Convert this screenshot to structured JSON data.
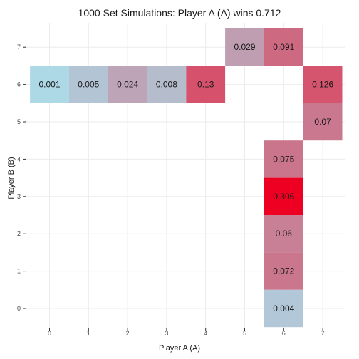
{
  "chart_data": {
    "type": "heatmap",
    "title": "1000 Set Simulations: Player A (A) wins 0.712",
    "xlabel": "Player A (A)",
    "ylabel": "Player B (B)",
    "x_ticks": [
      "0",
      "1",
      "2",
      "3",
      "4",
      "5",
      "6",
      "7"
    ],
    "y_ticks": [
      "0",
      "1",
      "2",
      "3",
      "4",
      "5",
      "6",
      "7"
    ],
    "grid": true,
    "legend": "none",
    "color_scale": {
      "low": "#add8e6",
      "high": "#ee0022"
    },
    "cells": [
      {
        "x": 0,
        "y": 6,
        "label": "0.001",
        "value": 0.001
      },
      {
        "x": 1,
        "y": 6,
        "label": "0.005",
        "value": 0.005
      },
      {
        "x": 2,
        "y": 6,
        "label": "0.024",
        "value": 0.024
      },
      {
        "x": 3,
        "y": 6,
        "label": "0.008",
        "value": 0.008
      },
      {
        "x": 4,
        "y": 6,
        "label": "0.13",
        "value": 0.13
      },
      {
        "x": 5,
        "y": 7,
        "label": "0.029",
        "value": 0.029
      },
      {
        "x": 6,
        "y": 7,
        "label": "0.091",
        "value": 0.091
      },
      {
        "x": 7,
        "y": 6,
        "label": "0.126",
        "value": 0.126
      },
      {
        "x": 7,
        "y": 5,
        "label": "0.07",
        "value": 0.07
      },
      {
        "x": 6,
        "y": 4,
        "label": "0.075",
        "value": 0.075
      },
      {
        "x": 6,
        "y": 3,
        "label": "0.305",
        "value": 0.305
      },
      {
        "x": 6,
        "y": 2,
        "label": "0.06",
        "value": 0.06
      },
      {
        "x": 6,
        "y": 1,
        "label": "0.072",
        "value": 0.072
      },
      {
        "x": 6,
        "y": 0,
        "label": "0.004",
        "value": 0.004
      }
    ]
  }
}
